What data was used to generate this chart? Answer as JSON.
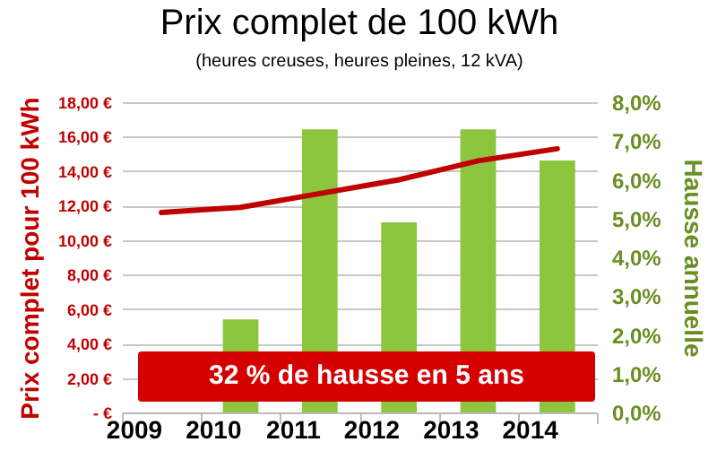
{
  "chart_data": {
    "type": "bar",
    "title": "Prix complet de 100 kWh",
    "subtitle": "(heures creuses, heures pleines, 12 kVA)",
    "ylabel": "Prix complet pour 100 kWh",
    "y2label": "Hausse annuelle",
    "categories": [
      "2009",
      "2010",
      "2011",
      "2012",
      "2013",
      "2014"
    ],
    "series": [
      {
        "type": "line",
        "color": "#c00000",
        "axis": "y",
        "values": [
          11.6,
          11.9,
          12.7,
          13.5,
          14.6,
          15.3
        ]
      },
      {
        "color": "#8cc63f",
        "axis": "y2",
        "values": [
          null,
          2.4,
          7.3,
          4.9,
          7.3,
          6.5
        ]
      }
    ],
    "ylim": [
      0,
      18
    ],
    "yticks": [
      {
        "value": 0,
        "label": "-   €"
      },
      {
        "value": 2,
        "label": "2,00 €"
      },
      {
        "value": 4,
        "label": "4,00 €"
      },
      {
        "value": 6,
        "label": "6,00 €"
      },
      {
        "value": 8,
        "label": "8,00 €"
      },
      {
        "value": 10,
        "label": "10,00 €"
      },
      {
        "value": 12,
        "label": "12,00 €"
      },
      {
        "value": 14,
        "label": "14,00 €"
      },
      {
        "value": 16,
        "label": "16,00 €"
      },
      {
        "value": 18,
        "label": "18,00 €"
      }
    ],
    "y2lim": [
      0,
      8
    ],
    "y2ticks": [
      {
        "value": 0,
        "label": "0,0%"
      },
      {
        "value": 1,
        "label": "1,0%"
      },
      {
        "value": 2,
        "label": "2,0%"
      },
      {
        "value": 3,
        "label": "3,0%"
      },
      {
        "value": 4,
        "label": "4,0%"
      },
      {
        "value": 5,
        "label": "5,0%"
      },
      {
        "value": 6,
        "label": "6,0%"
      },
      {
        "value": 7,
        "label": "7,0%"
      },
      {
        "value": 8,
        "label": "8,0%"
      }
    ],
    "grid": "y",
    "marker": "none",
    "annotations": [
      "32 % de hausse en 5 ans"
    ]
  }
}
